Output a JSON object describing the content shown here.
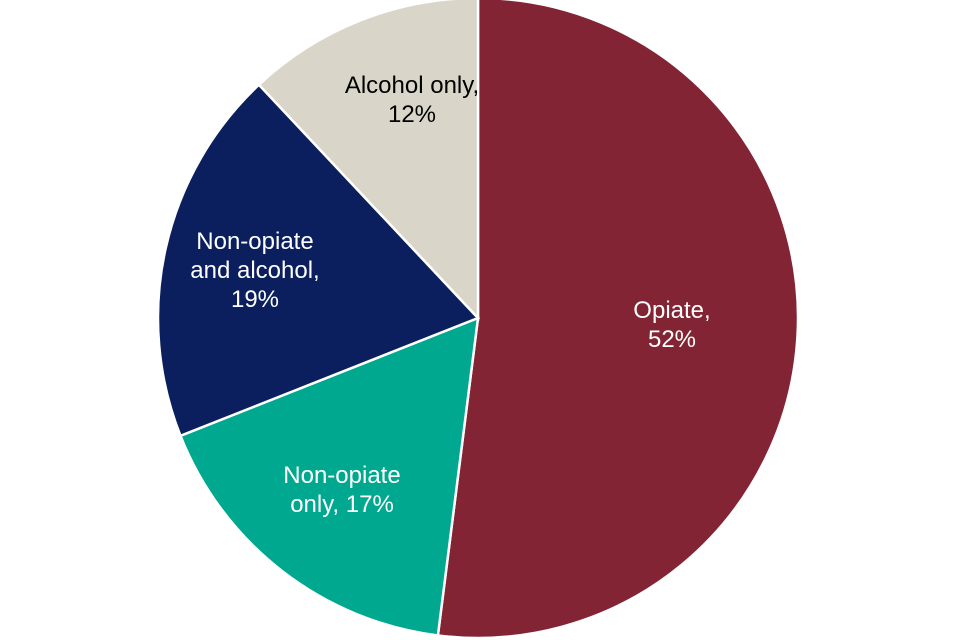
{
  "chart_data": {
    "type": "pie",
    "values": [
      52,
      17,
      19,
      12
    ],
    "value_labels": [
      "Opiate, 52%",
      "Non-opiate only, 17%",
      "Non-opiate and alcohol, 19%",
      "Alcohol only, 12%"
    ],
    "colors": [
      "#822433",
      "#00a88f",
      "#0b1f5e",
      "#d9d5c9"
    ]
  }
}
